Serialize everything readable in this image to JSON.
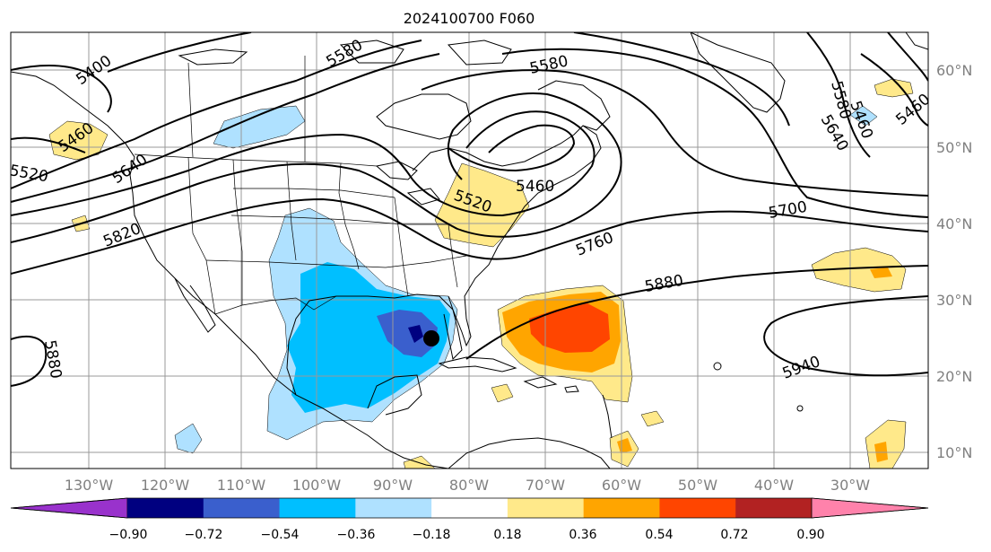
{
  "title": "2024100700 F060",
  "lon_labels": [
    "130°W",
    "120°W",
    "110°W",
    "100°W",
    "90°W",
    "80°W",
    "70°W",
    "60°W",
    "50°W",
    "40°W",
    "30°W"
  ],
  "lat_labels": [
    "60°N",
    "50°N",
    "40°N",
    "30°N",
    "20°N",
    "10°N"
  ],
  "colorbar": {
    "ticks": [
      "−0.90",
      "−0.72",
      "−0.54",
      "−0.36",
      "−0.18",
      "0.18",
      "0.36",
      "0.54",
      "0.72",
      "0.90"
    ],
    "colors": [
      "#9932cc",
      "#000080",
      "#3a5fcd",
      "#00bfff",
      "#afe1ff",
      "#ffffff",
      "#ffe98a",
      "#ffa500",
      "#ff4500",
      "#b22222",
      "#ff82ab"
    ]
  },
  "contour_labels": [
    "5400",
    "5580",
    "5580",
    "5520",
    "5580",
    "5460",
    "5460",
    "5640",
    "5460",
    "5640",
    "5520",
    "5460",
    "5700",
    "5820",
    "5760",
    "5880",
    "5880",
    "5940"
  ],
  "storm_marker": "storm-center"
}
